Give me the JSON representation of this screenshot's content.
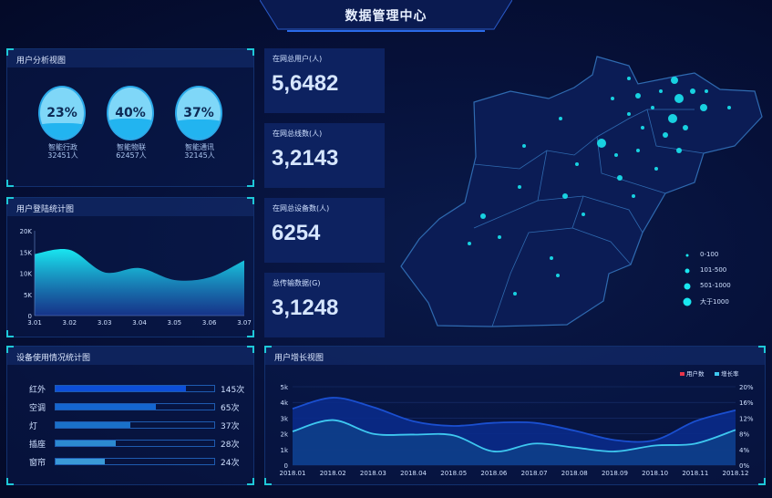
{
  "header": {
    "title": "数据管理中心"
  },
  "user_analysis": {
    "title": "用户分析视图",
    "items": [
      {
        "percent": "23%",
        "fill": 0.23,
        "name": "智能行政",
        "count": "32451人"
      },
      {
        "percent": "40%",
        "fill": 0.4,
        "name": "智能物联",
        "count": "62457人"
      },
      {
        "percent": "37%",
        "fill": 0.37,
        "name": "智能通讯",
        "count": "32145人"
      }
    ]
  },
  "stats": [
    {
      "label": "在网总用户(人)",
      "value": "5,6482"
    },
    {
      "label": "在网总线数(人)",
      "value": "3,2143"
    },
    {
      "label": "在网总设备数(人)",
      "value": "6254"
    },
    {
      "label": "总传输数据(G)",
      "value": "3,1248"
    }
  ],
  "map_legend": [
    {
      "label": "0-100"
    },
    {
      "label": "101-500"
    },
    {
      "label": "501-1000"
    },
    {
      "label": "大于1000"
    }
  ],
  "colors": {
    "accent": "#1ec8d8",
    "dot": "#19e6f0",
    "bar1": "#0d4fd8",
    "bar5": "#3a9ad8"
  },
  "device_usage": {
    "title": "设备使用情况统计图",
    "items": [
      {
        "name": "红外",
        "value": "145次",
        "fill": 0.82,
        "color": "#0d4fd8"
      },
      {
        "name": "空调",
        "value": "65次",
        "fill": 0.63,
        "color": "#1466d0"
      },
      {
        "name": "灯",
        "value": "37次",
        "fill": 0.47,
        "color": "#1a70c8"
      },
      {
        "name": "插座",
        "value": "28次",
        "fill": 0.38,
        "color": "#2c8ad0"
      },
      {
        "name": "窗帘",
        "value": "24次",
        "fill": 0.31,
        "color": "#3a9ad8"
      }
    ]
  },
  "chart_data": [
    {
      "type": "area",
      "title": "用户登陆统计图",
      "categories": [
        "3.01",
        "3.02",
        "3.03",
        "3.04",
        "3.05",
        "3.06",
        "3.07"
      ],
      "values": [
        14500,
        15500,
        10200,
        11200,
        8400,
        9000,
        13000
      ],
      "ylim": [
        0,
        20000
      ],
      "yticks": [
        "0",
        "5K",
        "10K",
        "15K",
        "20K"
      ],
      "grid": false
    },
    {
      "type": "area",
      "title": "用户增长视图",
      "categories": [
        "2018.01",
        "2018.02",
        "2018.03",
        "2018.04",
        "2018.05",
        "2018.06",
        "2018.07",
        "2018.08",
        "2018.09",
        "2018.10",
        "2018.11",
        "2018.12"
      ],
      "series": [
        {
          "name": "用户数",
          "axis": "left",
          "values": [
            3600,
            4300,
            3700,
            2800,
            2500,
            2700,
            2700,
            2200,
            1600,
            1600,
            2800,
            3500
          ],
          "color": "#1a4fd0"
        },
        {
          "name": "增长率",
          "axis": "right",
          "values": [
            8.6,
            11.5,
            8,
            7.8,
            7.6,
            3.5,
            5.5,
            4.5,
            3.5,
            5,
            5.5,
            9
          ],
          "color": "#3ec8f0"
        }
      ],
      "ylim_left": [
        0,
        5000
      ],
      "yticks_left": [
        "0",
        "1k",
        "2k",
        "3k",
        "4k",
        "5k"
      ],
      "ylim_right": [
        0,
        20
      ],
      "yticks_right": [
        "0%",
        "4%",
        "8%",
        "12%",
        "16%",
        "20%"
      ],
      "legend_position": "top-right",
      "legend_colors": [
        "#e8344a",
        "#3ec8f0"
      ],
      "grid": true
    }
  ]
}
